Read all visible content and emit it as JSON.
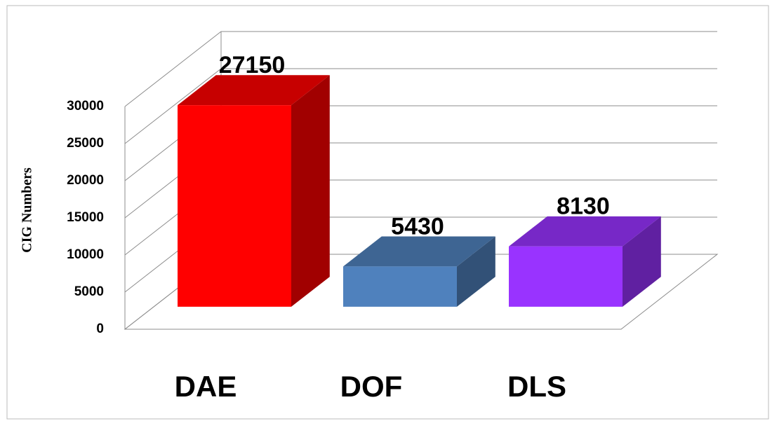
{
  "chart_data": {
    "type": "bar3d",
    "y_label": "CIG Numbers",
    "categories": [
      "DAE",
      "DOF",
      "DLS"
    ],
    "values": [
      27150,
      5430,
      8130
    ],
    "colors": [
      "#ff0000",
      "#4f81bd",
      "#9933ff"
    ],
    "ylim": [
      0,
      30000
    ],
    "yticks": [
      0,
      5000,
      10000,
      15000,
      20000,
      25000,
      30000
    ],
    "grid": true
  }
}
